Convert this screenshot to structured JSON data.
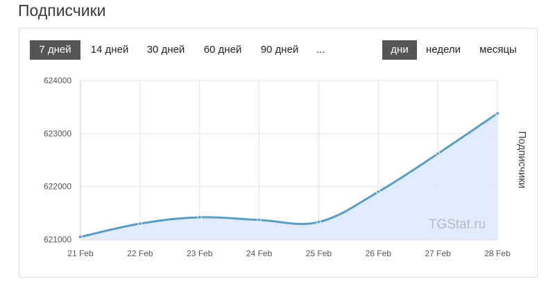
{
  "page": {
    "title": "Подписчики"
  },
  "controls": {
    "ranges": [
      {
        "label": "7 дней",
        "active": true
      },
      {
        "label": "14 дней",
        "active": false
      },
      {
        "label": "30 дней",
        "active": false
      },
      {
        "label": "60 дней",
        "active": false
      },
      {
        "label": "90 дней",
        "active": false
      },
      {
        "label": "...",
        "active": false
      }
    ],
    "periods": [
      {
        "label": "дни",
        "active": true
      },
      {
        "label": "недели",
        "active": false
      },
      {
        "label": "месяцы",
        "active": false
      }
    ]
  },
  "colors": {
    "line": "#5b9cc2",
    "fill": "#dbe9fb",
    "grid": "#e2e2e2",
    "active_button": "#555555"
  },
  "chart_data": {
    "type": "area",
    "x": [
      "21 Feb",
      "22 Feb",
      "23 Feb",
      "24 Feb",
      "25 Feb",
      "26 Feb",
      "27 Feb",
      "28 Feb"
    ],
    "series": [
      {
        "name": "",
        "values": [
          621050,
          621300,
          621420,
          621370,
          621330,
          621900,
          622620,
          623380
        ]
      }
    ],
    "ylabel": "Подписчики",
    "ylim": [
      621000,
      624000
    ],
    "yticks": [
      "621000",
      "622000",
      "623000",
      "624000"
    ],
    "grid": true,
    "watermark": "TGStat.ru"
  }
}
